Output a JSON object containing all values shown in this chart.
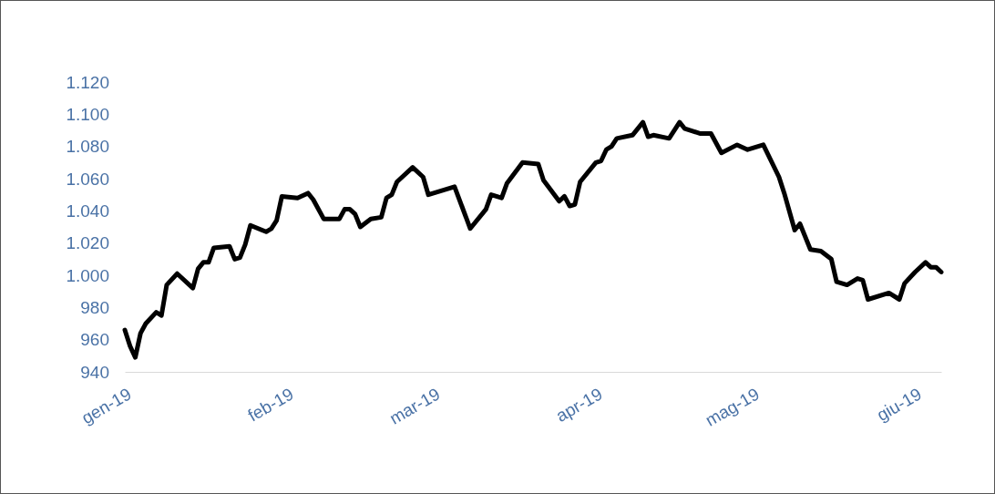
{
  "chart_data": {
    "type": "line",
    "x": [
      "2019-01-01",
      "2019-01-02",
      "2019-01-03",
      "2019-01-04",
      "2019-01-05",
      "2019-01-07",
      "2019-01-08",
      "2019-01-09",
      "2019-01-11",
      "2019-01-14",
      "2019-01-15",
      "2019-01-16",
      "2019-01-17",
      "2019-01-18",
      "2019-01-21",
      "2019-01-22",
      "2019-01-23",
      "2019-01-24",
      "2019-01-25",
      "2019-01-28",
      "2019-01-29",
      "2019-01-30",
      "2019-01-31",
      "2019-02-03",
      "2019-02-05",
      "2019-02-06",
      "2019-02-08",
      "2019-02-11",
      "2019-02-12",
      "2019-02-13",
      "2019-02-14",
      "2019-02-15",
      "2019-02-17",
      "2019-02-19",
      "2019-02-20",
      "2019-02-21",
      "2019-02-22",
      "2019-02-25",
      "2019-02-27",
      "2019-02-28",
      "2019-03-05",
      "2019-03-08",
      "2019-03-11",
      "2019-03-12",
      "2019-03-14",
      "2019-03-15",
      "2019-03-18",
      "2019-03-21",
      "2019-03-22",
      "2019-03-25",
      "2019-03-26",
      "2019-03-27",
      "2019-03-28",
      "2019-03-29",
      "2019-04-01",
      "2019-04-02",
      "2019-04-03",
      "2019-04-04",
      "2019-04-05",
      "2019-04-08",
      "2019-04-10",
      "2019-04-11",
      "2019-04-12",
      "2019-04-15",
      "2019-04-17",
      "2019-04-18",
      "2019-04-21",
      "2019-04-23",
      "2019-04-25",
      "2019-04-28",
      "2019-04-30",
      "2019-05-01",
      "2019-05-03",
      "2019-05-06",
      "2019-05-07",
      "2019-05-09",
      "2019-05-10",
      "2019-05-12",
      "2019-05-14",
      "2019-05-16",
      "2019-05-17",
      "2019-05-19",
      "2019-05-21",
      "2019-05-22",
      "2019-05-23",
      "2019-05-27",
      "2019-05-29",
      "2019-05-30",
      "2019-06-01",
      "2019-06-03",
      "2019-06-04",
      "2019-06-05",
      "2019-06-06"
    ],
    "series": [
      {
        "color": "#000000",
        "values": [
          966,
          956,
          949,
          964,
          970,
          977,
          975,
          994,
          1001,
          992,
          1004,
          1008,
          1008,
          1017,
          1018,
          1010,
          1011,
          1019,
          1031,
          1027,
          1029,
          1034,
          1049,
          1048,
          1051,
          1047,
          1035,
          1035,
          1041,
          1041,
          1038,
          1030,
          1035,
          1036,
          1048,
          1050,
          1058,
          1067,
          1061,
          1050,
          1055,
          1029,
          1041,
          1050,
          1048,
          1057,
          1070,
          1069,
          1059,
          1046,
          1049,
          1043,
          1044,
          1058,
          1070,
          1071,
          1078,
          1080,
          1085,
          1087,
          1095,
          1086,
          1087,
          1085,
          1095,
          1091,
          1088,
          1088,
          1076,
          1081,
          1078,
          1079,
          1081,
          1061,
          1051,
          1028,
          1032,
          1016,
          1015,
          1010,
          996,
          994,
          998,
          997,
          985,
          989,
          985,
          995,
          1002,
          1008,
          1005,
          1005,
          1002
        ]
      }
    ],
    "xlim": [
      "2019-01-01",
      "2019-06-06"
    ],
    "xticks": [
      {
        "value": "2019-01-01",
        "label": "gen-19"
      },
      {
        "value": "2019-02-01",
        "label": "feb-19"
      },
      {
        "value": "2019-03-01",
        "label": "mar-19"
      },
      {
        "value": "2019-04-01",
        "label": "apr-19"
      },
      {
        "value": "2019-05-01",
        "label": "mag-19"
      },
      {
        "value": "2019-06-01",
        "label": "giu-19"
      }
    ],
    "ylim": [
      940,
      1120
    ],
    "yticks": [
      {
        "value": 940,
        "label": "940"
      },
      {
        "value": 960,
        "label": "960"
      },
      {
        "value": 980,
        "label": "980"
      },
      {
        "value": 1000,
        "label": "1.000"
      },
      {
        "value": 1020,
        "label": "1.020"
      },
      {
        "value": 1040,
        "label": "1.040"
      },
      {
        "value": 1060,
        "label": "1.060"
      },
      {
        "value": 1080,
        "label": "1.080"
      },
      {
        "value": 1100,
        "label": "1.100"
      },
      {
        "value": 1120,
        "label": "1.120"
      }
    ],
    "grid": false,
    "marker": "none",
    "line_style": "solid"
  }
}
